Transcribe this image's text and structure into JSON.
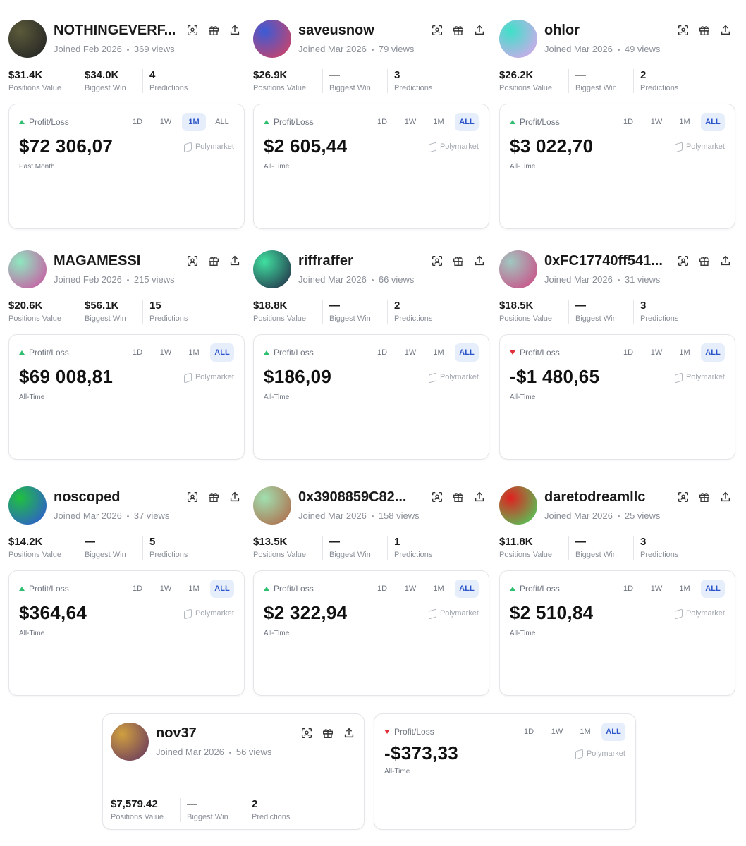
{
  "profiles": [
    {
      "name": "NOTHINGEVERF...",
      "joined": "Joined Feb 2026",
      "views": "369 views",
      "avatar": [
        "#5b5a3a",
        "#1f1f22"
      ],
      "stats": [
        {
          "value": "$31.4K",
          "label": "Positions Value"
        },
        {
          "value": "$34.0K",
          "label": "Biggest Win"
        },
        {
          "value": "4",
          "label": "Predictions"
        }
      ],
      "pnl": {
        "label": "Profit/Loss",
        "trend": "up",
        "tabs": [
          "1D",
          "1W",
          "1M",
          "ALL"
        ],
        "active_tab": 2,
        "amount": "$72 306,07",
        "period": "Past Month",
        "brand": "Polymarket"
      }
    },
    {
      "name": "saveusnow",
      "joined": "Joined Mar 2026",
      "views": "79 views",
      "avatar": [
        "#3b5bd6",
        "#e0405a"
      ],
      "stats": [
        {
          "value": "$26.9K",
          "label": "Positions Value"
        },
        {
          "value": "—",
          "label": "Biggest Win"
        },
        {
          "value": "3",
          "label": "Predictions"
        }
      ],
      "pnl": {
        "label": "Profit/Loss",
        "trend": "up",
        "tabs": [
          "1D",
          "1W",
          "1M",
          "ALL"
        ],
        "active_tab": 3,
        "amount": "$2 605,44",
        "period": "All-Time",
        "brand": "Polymarket"
      }
    },
    {
      "name": "ohlor",
      "joined": "Joined Mar 2026",
      "views": "49 views",
      "avatar": [
        "#3ee0c8",
        "#e8a0f0"
      ],
      "stats": [
        {
          "value": "$26.2K",
          "label": "Positions Value"
        },
        {
          "value": "—",
          "label": "Biggest Win"
        },
        {
          "value": "2",
          "label": "Predictions"
        }
      ],
      "pnl": {
        "label": "Profit/Loss",
        "trend": "up",
        "tabs": [
          "1D",
          "1W",
          "1M",
          "ALL"
        ],
        "active_tab": 3,
        "amount": "$3 022,70",
        "period": "All-Time",
        "brand": "Polymarket"
      }
    },
    {
      "name": "MAGAMESSI",
      "joined": "Joined Feb 2026",
      "views": "215 views",
      "avatar": [
        "#8ee8c0",
        "#d04aa0"
      ],
      "stats": [
        {
          "value": "$20.6K",
          "label": "Positions Value"
        },
        {
          "value": "$56.1K",
          "label": "Biggest Win"
        },
        {
          "value": "15",
          "label": "Predictions"
        }
      ],
      "pnl": {
        "label": "Profit/Loss",
        "trend": "up",
        "tabs": [
          "1D",
          "1W",
          "1M",
          "ALL"
        ],
        "active_tab": 3,
        "amount": "$69 008,81",
        "period": "All-Time",
        "brand": "Polymarket"
      }
    },
    {
      "name": "riffraffer",
      "joined": "Joined Mar 2026",
      "views": "66 views",
      "avatar": [
        "#40e0a0",
        "#202040"
      ],
      "stats": [
        {
          "value": "$18.8K",
          "label": "Positions Value"
        },
        {
          "value": "—",
          "label": "Biggest Win"
        },
        {
          "value": "2",
          "label": "Predictions"
        }
      ],
      "pnl": {
        "label": "Profit/Loss",
        "trend": "up",
        "tabs": [
          "1D",
          "1W",
          "1M",
          "ALL"
        ],
        "active_tab": 3,
        "amount": "$186,09",
        "period": "All-Time",
        "brand": "Polymarket"
      }
    },
    {
      "name": "0xFC17740ff541...",
      "joined": "Joined Mar 2026",
      "views": "31 views",
      "avatar": [
        "#a0c8c0",
        "#d04080"
      ],
      "stats": [
        {
          "value": "$18.5K",
          "label": "Positions Value"
        },
        {
          "value": "—",
          "label": "Biggest Win"
        },
        {
          "value": "3",
          "label": "Predictions"
        }
      ],
      "pnl": {
        "label": "Profit/Loss",
        "trend": "down",
        "tabs": [
          "1D",
          "1W",
          "1M",
          "ALL"
        ],
        "active_tab": 3,
        "amount": "-$1 480,65",
        "period": "All-Time",
        "brand": "Polymarket"
      }
    },
    {
      "name": "noscoped",
      "joined": "Joined Mar 2026",
      "views": "37 views",
      "avatar": [
        "#20c040",
        "#3050e0"
      ],
      "stats": [
        {
          "value": "$14.2K",
          "label": "Positions Value"
        },
        {
          "value": "—",
          "label": "Biggest Win"
        },
        {
          "value": "5",
          "label": "Predictions"
        }
      ],
      "pnl": {
        "label": "Profit/Loss",
        "trend": "up",
        "tabs": [
          "1D",
          "1W",
          "1M",
          "ALL"
        ],
        "active_tab": 3,
        "amount": "$364,64",
        "period": "All-Time",
        "brand": "Polymarket"
      }
    },
    {
      "name": "0x3908859C82...",
      "joined": "Joined Mar 2026",
      "views": "158 views",
      "avatar": [
        "#a0e0b0",
        "#b06040"
      ],
      "stats": [
        {
          "value": "$13.5K",
          "label": "Positions Value"
        },
        {
          "value": "—",
          "label": "Biggest Win"
        },
        {
          "value": "1",
          "label": "Predictions"
        }
      ],
      "pnl": {
        "label": "Profit/Loss",
        "trend": "up",
        "tabs": [
          "1D",
          "1W",
          "1M",
          "ALL"
        ],
        "active_tab": 3,
        "amount": "$2 322,94",
        "period": "All-Time",
        "brand": "Polymarket"
      }
    },
    {
      "name": "daretodreamllc",
      "joined": "Joined Mar 2026",
      "views": "25 views",
      "avatar": [
        "#e02020",
        "#40e060"
      ],
      "stats": [
        {
          "value": "$11.8K",
          "label": "Positions Value"
        },
        {
          "value": "—",
          "label": "Biggest Win"
        },
        {
          "value": "3",
          "label": "Predictions"
        }
      ],
      "pnl": {
        "label": "Profit/Loss",
        "trend": "up",
        "tabs": [
          "1D",
          "1W",
          "1M",
          "ALL"
        ],
        "active_tab": 3,
        "amount": "$2 510,84",
        "period": "All-Time",
        "brand": "Polymarket"
      }
    },
    {
      "name": "nov37",
      "joined": "Joined Mar 2026",
      "views": "56 views",
      "avatar": [
        "#d0a040",
        "#603060"
      ],
      "stats": [
        {
          "value": "$7,579.42",
          "label": "Positions Value"
        },
        {
          "value": "—",
          "label": "Biggest Win"
        },
        {
          "value": "2",
          "label": "Predictions"
        }
      ],
      "pnl": {
        "label": "Profit/Loss",
        "trend": "down",
        "tabs": [
          "1D",
          "1W",
          "1M",
          "ALL"
        ],
        "active_tab": 3,
        "amount": "-$373,33",
        "period": "All-Time",
        "brand": "Polymarket"
      }
    }
  ]
}
